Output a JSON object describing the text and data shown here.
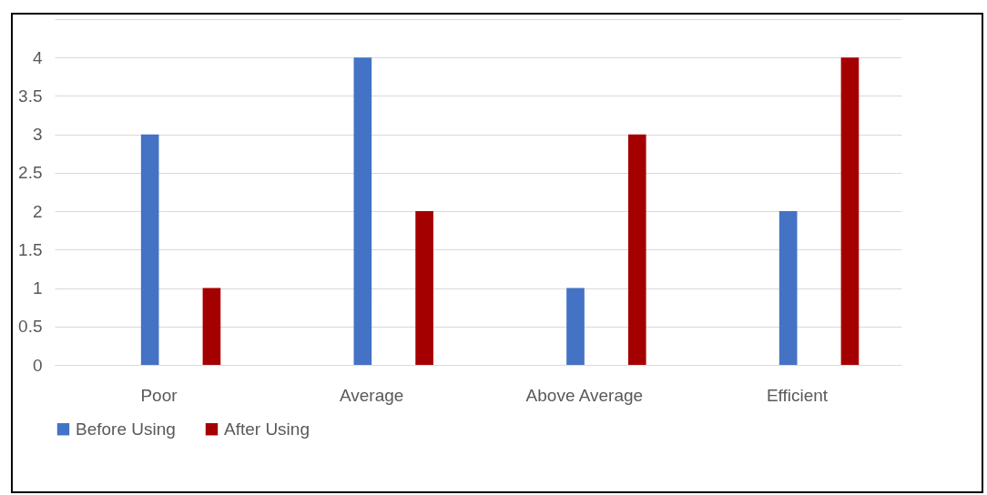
{
  "chart_data": {
    "type": "bar",
    "categories": [
      "Poor",
      "Average",
      "Above Average",
      "Efficient"
    ],
    "series": [
      {
        "name": "Before Using",
        "color": "#4472c4",
        "values": [
          3,
          4,
          1,
          2
        ]
      },
      {
        "name": "After Using",
        "color": "#a50000",
        "values": [
          1,
          2,
          3,
          4
        ]
      }
    ],
    "ylim": [
      0,
      4.5
    ],
    "yticks": [
      0,
      0.5,
      1,
      1.5,
      2,
      2.5,
      3,
      3.5,
      4,
      {
        "value": 4.5,
        "label": null
      }
    ],
    "grid": "y",
    "legend": "bottom"
  }
}
